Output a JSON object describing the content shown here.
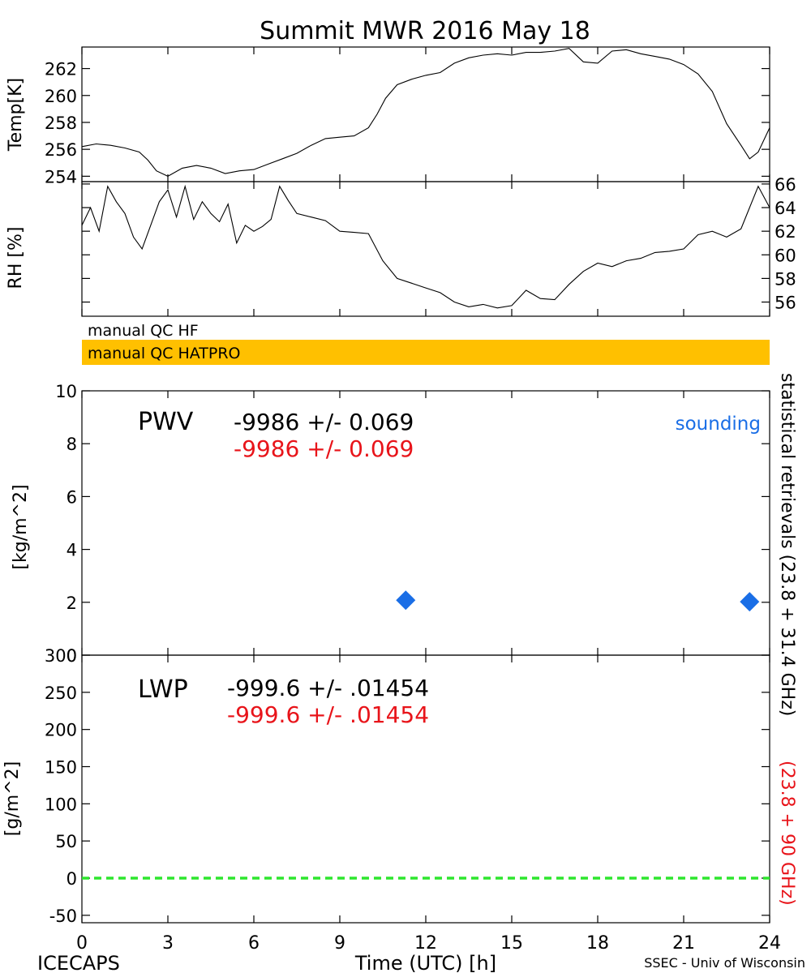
{
  "title": "Summit MWR 2016 May 18",
  "footer": {
    "left": "ICECAPS",
    "right": "SSEC - Univ of Wisconsin"
  },
  "colors": {
    "qc_hatpro": "#ffc000",
    "sounding": "#1a6ee6",
    "retrieval_90": "#e8141a",
    "zero_line": "#2ee62e",
    "trace": "#000000"
  },
  "qc_bars": {
    "hf": "manual QC HF",
    "hatpro": "manual QC HATPRO"
  },
  "side_labels": {
    "black": "statistical retrievals (23.8 + 31.4 GHz)",
    "red": "(23.8 + 90 GHz)"
  },
  "chart_data": [
    {
      "type": "line",
      "name": "temp",
      "ylabel": "Temp[K]",
      "xlim": [
        0,
        24
      ],
      "ylim": [
        253.6,
        263.6
      ],
      "yticks": [
        "254",
        "256",
        "258",
        "260",
        "262"
      ],
      "x": [
        0,
        0.5,
        1,
        1.5,
        2,
        2.3,
        2.6,
        3,
        3.5,
        4,
        4.5,
        5,
        5.5,
        6,
        6.5,
        7,
        7.5,
        8,
        8.5,
        9,
        9.5,
        10,
        10.3,
        10.6,
        11,
        11.5,
        12,
        12.5,
        13,
        13.5,
        14,
        14.5,
        15,
        15.5,
        16,
        16.5,
        17,
        17.5,
        18,
        18.5,
        19,
        19.5,
        20,
        20.5,
        21,
        21.5,
        22,
        22.5,
        23,
        23.3,
        23.6,
        24
      ],
      "y": [
        256.2,
        256.4,
        256.3,
        256.1,
        255.8,
        255.2,
        254.4,
        254.0,
        254.6,
        254.8,
        254.6,
        254.2,
        254.4,
        254.5,
        254.9,
        255.3,
        255.7,
        256.3,
        256.8,
        256.9,
        257.0,
        257.6,
        258.6,
        259.8,
        260.8,
        261.2,
        261.5,
        261.7,
        262.4,
        262.8,
        263.0,
        263.1,
        263.0,
        263.2,
        263.2,
        263.3,
        263.5,
        262.5,
        262.4,
        263.3,
        263.4,
        263.1,
        262.9,
        262.7,
        262.3,
        261.6,
        260.3,
        257.9,
        256.3,
        255.3,
        255.8,
        257.6
      ]
    },
    {
      "type": "line",
      "name": "rh",
      "ylabel": "RH [%]",
      "xlim": [
        0,
        24
      ],
      "ylim": [
        54.8,
        66.2
      ],
      "yticks": [
        "56",
        "58",
        "60",
        "62",
        "64",
        "66"
      ],
      "x": [
        0,
        0.3,
        0.6,
        0.9,
        1.2,
        1.5,
        1.8,
        2.1,
        2.4,
        2.7,
        3.0,
        3.3,
        3.6,
        3.9,
        4.2,
        4.5,
        4.8,
        5.1,
        5.4,
        5.7,
        6.0,
        6.3,
        6.6,
        6.9,
        7.2,
        7.5,
        8.0,
        8.5,
        9.0,
        9.5,
        10.0,
        10.5,
        11.0,
        11.5,
        12.0,
        12.5,
        13.0,
        13.5,
        14.0,
        14.5,
        15.0,
        15.5,
        16.0,
        16.5,
        17.0,
        17.5,
        18.0,
        18.5,
        19.0,
        19.5,
        20.0,
        20.5,
        21.0,
        21.5,
        22.0,
        22.5,
        23.0,
        23.3,
        23.6,
        24.0
      ],
      "y": [
        62.5,
        64.0,
        62.0,
        65.8,
        64.5,
        63.5,
        61.5,
        60.5,
        62.5,
        64.5,
        65.5,
        63.2,
        65.8,
        63.0,
        64.5,
        63.5,
        62.8,
        64.3,
        61.0,
        62.5,
        62.0,
        62.4,
        63.0,
        65.8,
        64.6,
        63.5,
        63.2,
        62.9,
        62.0,
        61.9,
        61.8,
        59.5,
        58.0,
        57.6,
        57.2,
        56.8,
        56.0,
        55.6,
        55.8,
        55.5,
        55.7,
        57.0,
        56.3,
        56.2,
        57.5,
        58.6,
        59.3,
        59.0,
        59.5,
        59.7,
        60.2,
        60.3,
        60.5,
        61.7,
        62.0,
        61.5,
        62.2,
        64.0,
        65.8,
        64.0
      ]
    },
    {
      "type": "scatter",
      "name": "pwv",
      "ylabel": "[kg/m^2]",
      "label": "PWV",
      "stat_black": "-9986 +/- 0.069",
      "stat_red": "-9986 +/- 0.069",
      "legend_sounding": "sounding",
      "xlim": [
        0,
        24
      ],
      "ylim": [
        0,
        10
      ],
      "yticks": [
        "0",
        "2",
        "4",
        "6",
        "8",
        "10"
      ],
      "sounding_x": [
        11.3,
        23.3
      ],
      "sounding_y": [
        2.08,
        2.02
      ]
    },
    {
      "type": "line",
      "name": "lwp",
      "ylabel": "[g/m^2]",
      "label": "LWP",
      "stat_black": "-999.6 +/- .01454",
      "stat_red": "-999.6 +/- .01454",
      "xlabel": "Time (UTC) [h]",
      "xlim": [
        0,
        24
      ],
      "ylim": [
        -60,
        300
      ],
      "yticks": [
        "-50",
        "0",
        "50",
        "100",
        "150",
        "200",
        "250",
        "300"
      ],
      "xticks": [
        "0",
        "3",
        "6",
        "9",
        "12",
        "15",
        "18",
        "21",
        "24"
      ],
      "zero_line": 0
    }
  ]
}
